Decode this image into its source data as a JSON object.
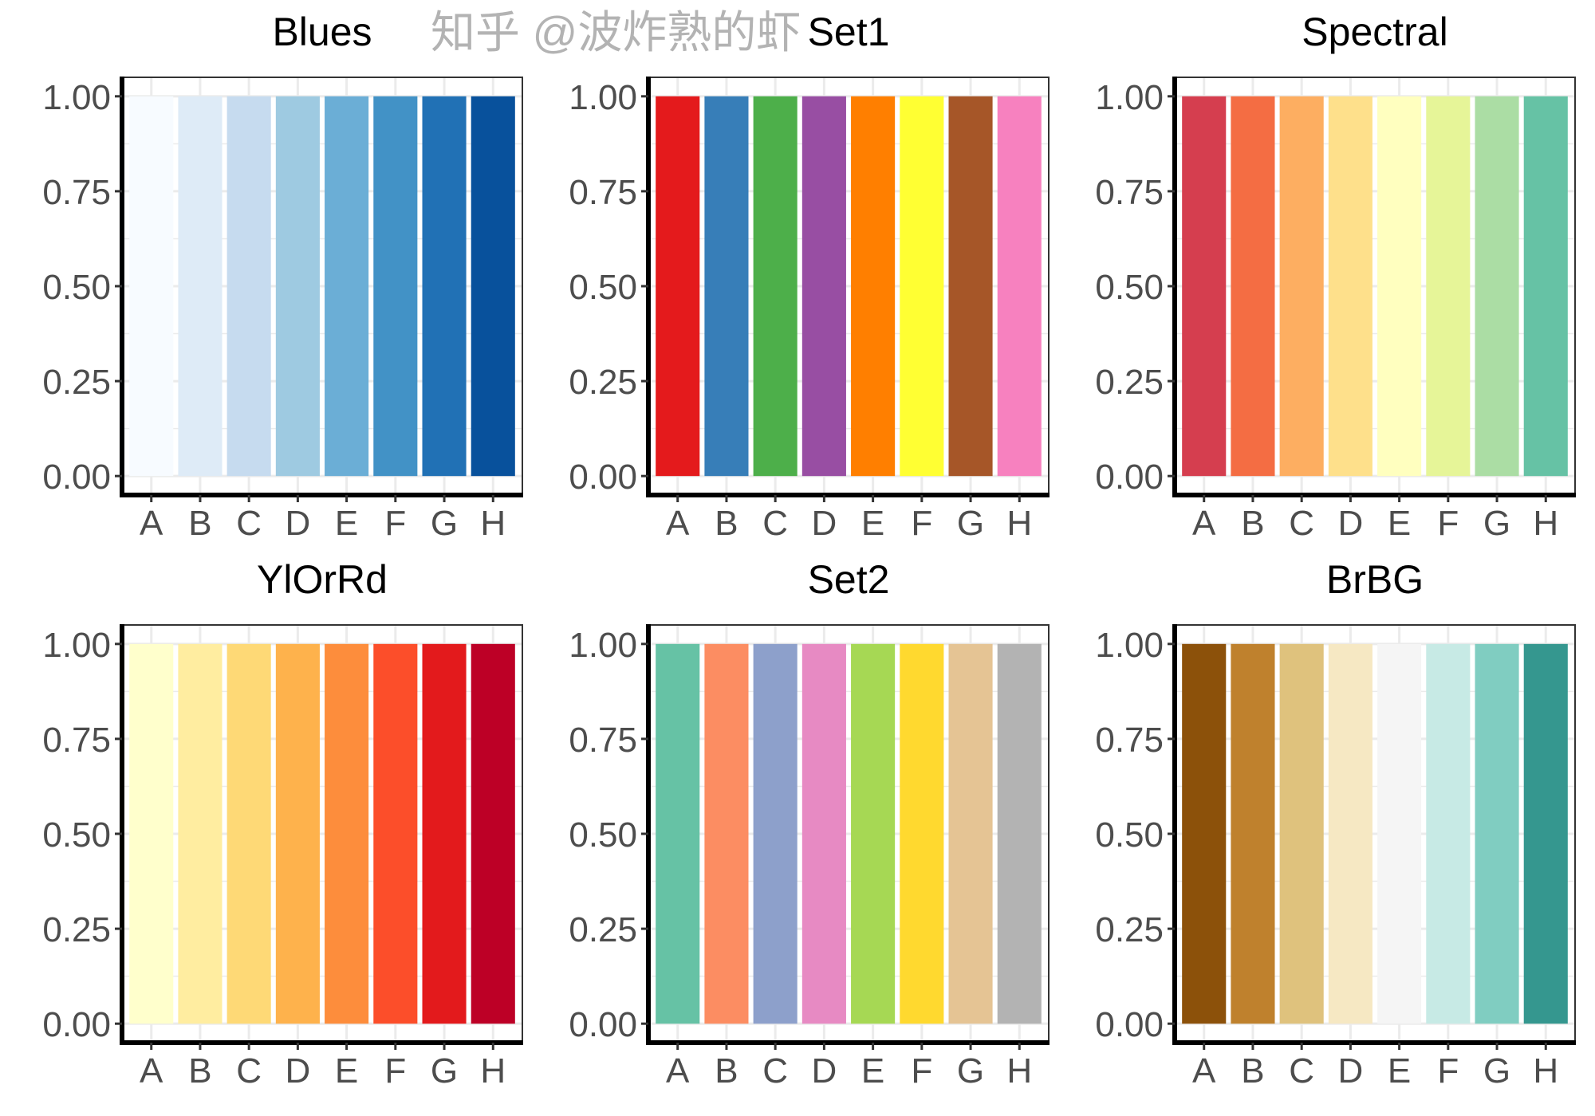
{
  "chart_data": [
    {
      "type": "bar",
      "title": "Blues",
      "categories": [
        "A",
        "B",
        "C",
        "D",
        "E",
        "F",
        "G",
        "H"
      ],
      "values": [
        1,
        1,
        1,
        1,
        1,
        1,
        1,
        1
      ],
      "ylim": [
        0,
        1
      ],
      "yticks": [
        "0.00",
        "0.25",
        "0.50",
        "0.75",
        "1.00"
      ],
      "grid": true,
      "colors": [
        "#F7FBFF",
        "#DEEBF7",
        "#C6DBEF",
        "#9ECAE1",
        "#6BAED6",
        "#4292C6",
        "#2171B5",
        "#08519C"
      ]
    },
    {
      "type": "bar",
      "title": "Set1",
      "categories": [
        "A",
        "B",
        "C",
        "D",
        "E",
        "F",
        "G",
        "H"
      ],
      "values": [
        1,
        1,
        1,
        1,
        1,
        1,
        1,
        1
      ],
      "ylim": [
        0,
        1
      ],
      "yticks": [
        "0.00",
        "0.25",
        "0.50",
        "0.75",
        "1.00"
      ],
      "grid": true,
      "colors": [
        "#E41A1C",
        "#377EB8",
        "#4DAF4A",
        "#984EA3",
        "#FF7F00",
        "#FFFF33",
        "#A65628",
        "#F781BF"
      ]
    },
    {
      "type": "bar",
      "title": "Spectral",
      "categories": [
        "A",
        "B",
        "C",
        "D",
        "E",
        "F",
        "G",
        "H"
      ],
      "values": [
        1,
        1,
        1,
        1,
        1,
        1,
        1,
        1
      ],
      "ylim": [
        0,
        1
      ],
      "yticks": [
        "0.00",
        "0.25",
        "0.50",
        "0.75",
        "1.00"
      ],
      "grid": true,
      "colors": [
        "#D53E4F",
        "#F46D43",
        "#FDAE61",
        "#FEE08B",
        "#FFFFBF",
        "#E6F598",
        "#ABDDA4",
        "#66C2A5"
      ]
    },
    {
      "type": "bar",
      "title": "YlOrRd",
      "categories": [
        "A",
        "B",
        "C",
        "D",
        "E",
        "F",
        "G",
        "H"
      ],
      "values": [
        1,
        1,
        1,
        1,
        1,
        1,
        1,
        1
      ],
      "ylim": [
        0,
        1
      ],
      "yticks": [
        "0.00",
        "0.25",
        "0.50",
        "0.75",
        "1.00"
      ],
      "grid": true,
      "colors": [
        "#FFFFCC",
        "#FFEDA0",
        "#FED976",
        "#FEB24C",
        "#FD8D3C",
        "#FC4E2A",
        "#E31A1C",
        "#BD0026"
      ]
    },
    {
      "type": "bar",
      "title": "Set2",
      "categories": [
        "A",
        "B",
        "C",
        "D",
        "E",
        "F",
        "G",
        "H"
      ],
      "values": [
        1,
        1,
        1,
        1,
        1,
        1,
        1,
        1
      ],
      "ylim": [
        0,
        1
      ],
      "yticks": [
        "0.00",
        "0.25",
        "0.50",
        "0.75",
        "1.00"
      ],
      "grid": true,
      "colors": [
        "#66C2A5",
        "#FC8D62",
        "#8DA0CB",
        "#E78AC3",
        "#A6D854",
        "#FFD92F",
        "#E5C494",
        "#B3B3B3"
      ]
    },
    {
      "type": "bar",
      "title": "BrBG",
      "categories": [
        "A",
        "B",
        "C",
        "D",
        "E",
        "F",
        "G",
        "H"
      ],
      "values": [
        1,
        1,
        1,
        1,
        1,
        1,
        1,
        1
      ],
      "ylim": [
        0,
        1
      ],
      "yticks": [
        "0.00",
        "0.25",
        "0.50",
        "0.75",
        "1.00"
      ],
      "grid": true,
      "colors": [
        "#8C510A",
        "#BF812D",
        "#DFC27D",
        "#F6E8C3",
        "#F5F5F5",
        "#C7EAE5",
        "#80CDC1",
        "#35978F"
      ]
    }
  ],
  "watermark": "知乎 @波炸熟的虾"
}
